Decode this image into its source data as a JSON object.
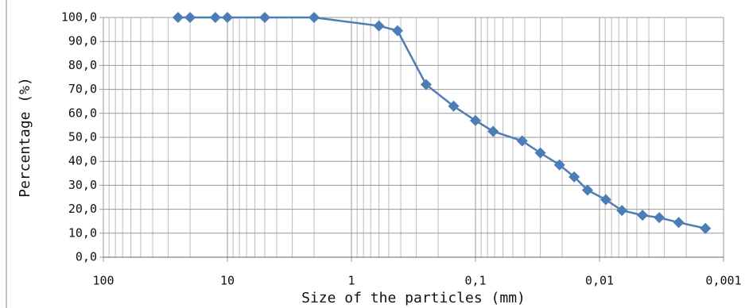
{
  "chart_data": {
    "type": "line",
    "xlabel": "Size of the particles (mm)",
    "ylabel": "Percentage (%)",
    "xscale": "log",
    "grid": true,
    "x": [
      25,
      20,
      12.5,
      10,
      5,
      2,
      0.6,
      0.425,
      0.25,
      0.15,
      0.1,
      0.072,
      0.042,
      0.03,
      0.021,
      0.016,
      0.0125,
      0.0089,
      0.0066,
      0.0045,
      0.0033,
      0.0023,
      0.0014
    ],
    "series": [
      {
        "color": "#4a7ebb",
        "values": [
          100,
          100,
          100,
          100,
          100,
          100,
          96.5,
          94.5,
          72,
          63,
          57,
          52.5,
          48.5,
          43.5,
          38.5,
          33.5,
          28,
          24,
          19.5,
          17.5,
          16.5,
          14.5,
          12
        ]
      }
    ],
    "xlim": [
      100,
      0.001
    ],
    "xticks": [
      100,
      10,
      1,
      {
        "value": 0.1,
        "label": "0,1"
      },
      {
        "value": 0.01,
        "label": "0,01"
      },
      {
        "value": 0.001,
        "label": "0,001"
      }
    ],
    "ylim": [
      0,
      100
    ],
    "yticks": [
      {
        "value": 0,
        "label": "0,0"
      },
      {
        "value": 10,
        "label": "10,0"
      },
      {
        "value": 20,
        "label": "20,0"
      },
      {
        "value": 30,
        "label": "30,0"
      },
      {
        "value": 40,
        "label": "40,0"
      },
      {
        "value": 50,
        "label": "50,0"
      },
      {
        "value": 60,
        "label": "60,0"
      },
      {
        "value": 70,
        "label": "70,0"
      },
      {
        "value": 80,
        "label": "80,0"
      },
      {
        "value": 90,
        "label": "90,0"
      },
      {
        "value": 100,
        "label": "100,0"
      }
    ]
  }
}
